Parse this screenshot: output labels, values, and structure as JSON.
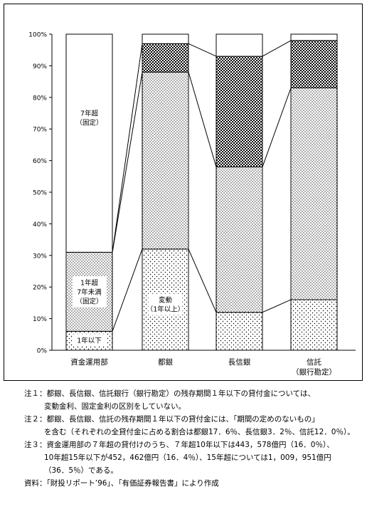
{
  "chart_data": {
    "type": "bar",
    "stacked": true,
    "percent": true,
    "categories": [
      "資金運用部",
      "都銀",
      "長信銀",
      "信託（銀行勘定）"
    ],
    "category_labels": [
      [
        "資金運用部"
      ],
      [
        "都銀"
      ],
      [
        "長信銀"
      ],
      [
        "信託",
        "（銀行勘定）"
      ]
    ],
    "ylim": [
      0,
      100
    ],
    "yticks": [
      "0%",
      "10%",
      "20%",
      "30%",
      "40%",
      "50%",
      "60%",
      "70%",
      "80%",
      "90%",
      "100%"
    ],
    "series": [
      {
        "id": "s1",
        "values": [
          6,
          32,
          12,
          16
        ],
        "fill": "pat-dots-light"
      },
      {
        "id": "s2",
        "values": [
          25,
          56,
          46,
          67
        ],
        "fill": "pat-dots"
      },
      {
        "id": "s3",
        "values": [
          0,
          9,
          35,
          15
        ],
        "fill": "pat-check"
      },
      {
        "id": "s4",
        "values": [
          69,
          3,
          7,
          2
        ],
        "fill": "white"
      }
    ],
    "annotations": [
      {
        "bar": 0,
        "y": 73.5,
        "lines": [
          "7年超",
          "（固定）"
        ]
      },
      {
        "bar": 0,
        "y": 18.5,
        "lines": [
          "1年超",
          "7年未満",
          "（固定）"
        ]
      },
      {
        "bar": 0,
        "y": 3.2,
        "lines": [
          "1年以下"
        ]
      },
      {
        "bar": 1,
        "y": 14.5,
        "lines": [
          "変動",
          "（1年以上）"
        ]
      }
    ]
  },
  "notes": [
    [
      "注１：都銀、長信銀、信託銀行（銀行勘定）の残存期間１年以下の貸付金については、",
      "変動金利、固定金利の区別をしていない。"
    ],
    [
      "注２：都銀、長信銀、信託の残存期間１年以下の貸付金には、「期間の定めのないもの」",
      "を含む（それぞれの全貸付金に占める割合は都銀17．6％、長信銀3．2％、信託12．0％）。"
    ],
    [
      "注３：資金運用部の７年超の貸付けのうち、７年超10年以下は443，578億円（16．0％）、",
      "10年超15年以下が452，462億円（16．4％）、15年超については1，009，951億円",
      "（36．5％）である。"
    ],
    [
      "資料：「財投リポート’96」、「有価証券報告書」により作成"
    ]
  ]
}
